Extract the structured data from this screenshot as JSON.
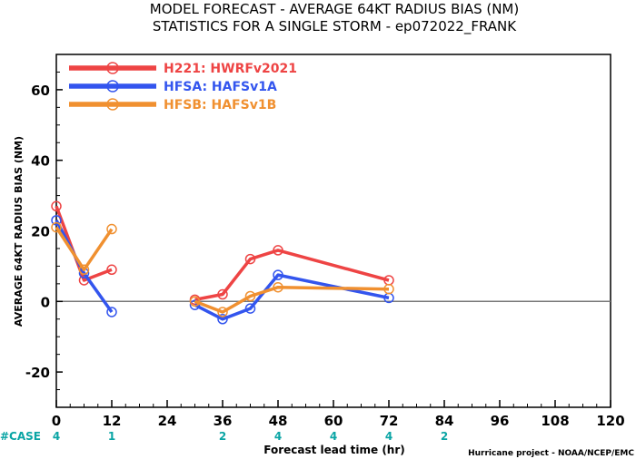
{
  "title_line1": "MODEL FORECAST - AVERAGE 64KT RADIUS BIAS (NM)",
  "title_line2": "STATISTICS FOR A SINGLE STORM - ep072022_FRANK",
  "footer_credit": "Hurricane project - NOAA/NCEP/EMC",
  "case_label": "#CASE",
  "colors": {
    "case_label": "#0aa5a5",
    "zero_line": "#777777",
    "axis": "#000000"
  },
  "chart_data": {
    "type": "line",
    "xlabel": "Forecast lead time (hr)",
    "ylabel": "AVERAGE 64KT RADIUS BIAS (NM)",
    "xlim": [
      0,
      120
    ],
    "ylim": [
      -30,
      70
    ],
    "xticks": [
      0,
      12,
      24,
      36,
      48,
      60,
      72,
      84,
      96,
      108,
      120
    ],
    "yticks": [
      -20,
      0,
      20,
      40,
      60
    ],
    "zero_line": true,
    "grid": false,
    "legend_position": "top-left",
    "series": [
      {
        "name": "H221: HWRFv2021",
        "color": "#ee4444",
        "segments": [
          [
            [
              0,
              27
            ],
            [
              6,
              6
            ],
            [
              12,
              9
            ]
          ],
          [
            [
              30,
              0.5
            ],
            [
              36,
              2
            ],
            [
              42,
              12
            ],
            [
              48,
              14.5
            ],
            [
              72,
              6
            ]
          ]
        ]
      },
      {
        "name": "HFSA: HAFSv1A",
        "color": "#3355ee",
        "segments": [
          [
            [
              0,
              23
            ],
            [
              6,
              8
            ],
            [
              12,
              -3
            ]
          ],
          [
            [
              30,
              -1
            ],
            [
              36,
              -5
            ],
            [
              42,
              -2
            ],
            [
              48,
              7.5
            ],
            [
              72,
              1
            ]
          ]
        ]
      },
      {
        "name": "HFSB: HAFSv1B",
        "color": "#f09030",
        "segments": [
          [
            [
              0,
              21
            ],
            [
              6,
              9
            ],
            [
              12,
              20.5
            ]
          ],
          [
            [
              30,
              0
            ],
            [
              36,
              -3
            ],
            [
              42,
              1.5
            ],
            [
              48,
              4
            ],
            [
              72,
              3.5
            ]
          ]
        ]
      }
    ],
    "case_counts": [
      {
        "x": 0,
        "n": "4"
      },
      {
        "x": 12,
        "n": "1"
      },
      {
        "x": 36,
        "n": "2"
      },
      {
        "x": 48,
        "n": "4"
      },
      {
        "x": 60,
        "n": "4"
      },
      {
        "x": 72,
        "n": "4"
      },
      {
        "x": 84,
        "n": "2"
      }
    ]
  }
}
